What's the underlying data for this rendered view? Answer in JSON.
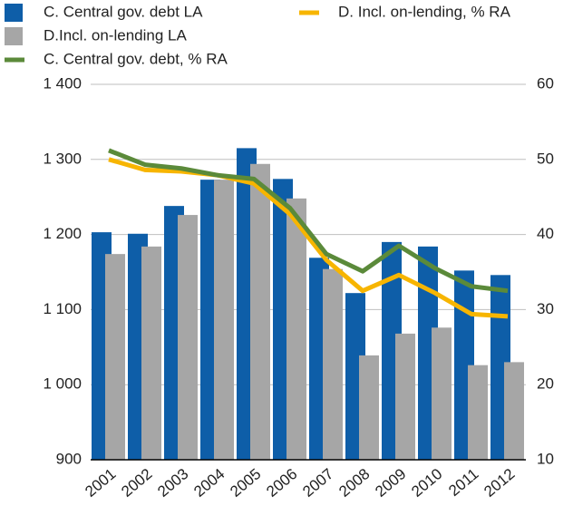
{
  "chart_data": {
    "type": "bar",
    "categories": [
      "2001",
      "2002",
      "2003",
      "2004",
      "2005",
      "2006",
      "2007",
      "2008",
      "2009",
      "2010",
      "2011",
      "2012"
    ],
    "series": [
      {
        "name": "C. Central gov. debt LA",
        "type": "bar",
        "color": "#0e5ea8",
        "values": [
          1203,
          1201,
          1238,
          1273,
          1315,
          1274,
          1169,
          1122,
          1190,
          1184,
          1152,
          1146
        ]
      },
      {
        "name": "D. Incl. on-lending, % RA",
        "type": "line",
        "axis": "y2",
        "color": "#f7b500",
        "values": [
          50.0,
          48.6,
          48.4,
          47.9,
          46.8,
          42.7,
          36.6,
          32.5,
          34.6,
          32.2,
          29.4,
          29.1
        ]
      },
      {
        "name": "D.Incl. on-lending LA",
        "type": "bar",
        "color": "#a6a6a6",
        "values": [
          1174,
          1184,
          1226,
          1273,
          1294,
          1248,
          1154,
          1039,
          1068,
          1076,
          1026,
          1030
        ]
      },
      {
        "name": "C. Central gov. debt, % RA",
        "type": "line",
        "axis": "y2",
        "color": "#5b8a3a",
        "values": [
          51.2,
          49.3,
          48.8,
          47.9,
          47.4,
          43.5,
          37.4,
          35.1,
          38.5,
          35.5,
          33.1,
          32.5
        ]
      }
    ],
    "ylim": [
      900,
      1400
    ],
    "yticks": [
      {
        "value": 900,
        "label": "900"
      },
      {
        "value": 1000,
        "label": "1 000"
      },
      {
        "value": 1100,
        "label": "1 100"
      },
      {
        "value": 1200,
        "label": "1 200"
      },
      {
        "value": 1300,
        "label": "1 300"
      },
      {
        "value": 1400,
        "label": "1 400"
      }
    ],
    "y2lim": [
      10,
      60
    ],
    "y2ticks": [
      10,
      20,
      30,
      40,
      50,
      60
    ],
    "grid": true
  }
}
